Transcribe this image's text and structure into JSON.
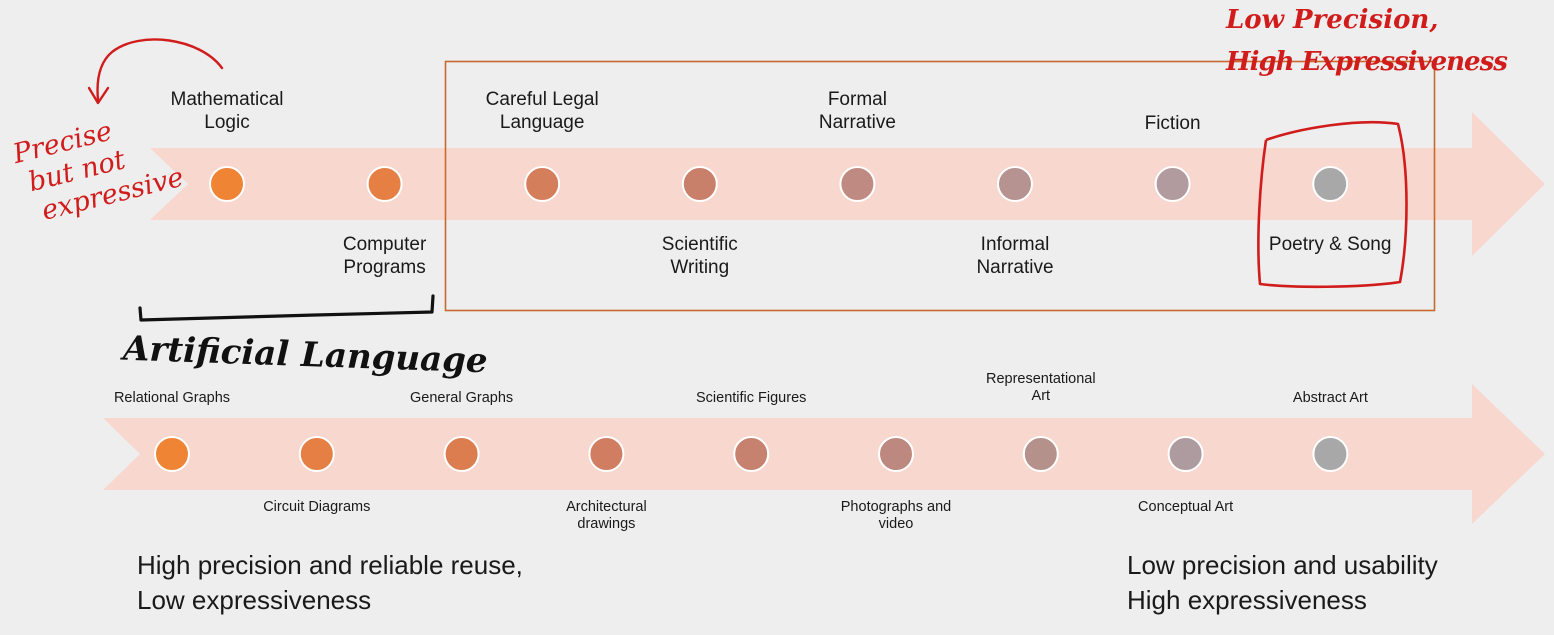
{
  "colors": {
    "band": "#f8d7cf",
    "frame": "#c8692e",
    "ink_red": "#d11c1c",
    "ink_black": "#111111"
  },
  "top_scale": {
    "points": [
      {
        "label": [
          "Mathematical",
          "Logic"
        ],
        "pos": "above",
        "color": "#ef8434"
      },
      {
        "label": [
          "Computer",
          "Programs"
        ],
        "pos": "below",
        "color": "#e57f44"
      },
      {
        "label": [
          "Careful Legal",
          "Language"
        ],
        "pos": "above",
        "color": "#d57e5c"
      },
      {
        "label": [
          "Scientific",
          "Writing"
        ],
        "pos": "below",
        "color": "#c9806a"
      },
      {
        "label": [
          "Formal",
          "Narrative"
        ],
        "pos": "above",
        "color": "#bf8a81"
      },
      {
        "label": [
          "Informal",
          "Narrative"
        ],
        "pos": "below",
        "color": "#b69391"
      },
      {
        "label": [
          "Fiction"
        ],
        "pos": "above",
        "color": "#b19b9e"
      },
      {
        "label": [
          "Poetry & Song"
        ],
        "pos": "below",
        "color": "#a8a8a8"
      }
    ]
  },
  "bottom_scale": {
    "points": [
      {
        "label": [
          "Relational Graphs"
        ],
        "pos": "above",
        "color": "#ef8434"
      },
      {
        "label": [
          "Circuit Diagrams"
        ],
        "pos": "below",
        "color": "#e57f44"
      },
      {
        "label": [
          "General Graphs"
        ],
        "pos": "above",
        "color": "#dc7d50"
      },
      {
        "label": [
          "Architectural",
          "drawings"
        ],
        "pos": "below",
        "color": "#d07d62"
      },
      {
        "label": [
          "Scientific Figures"
        ],
        "pos": "above",
        "color": "#c6826f"
      },
      {
        "label": [
          "Photographs and",
          "video"
        ],
        "pos": "below",
        "color": "#bd887f"
      },
      {
        "label": [
          "Representational",
          "Art"
        ],
        "pos": "above",
        "color": "#b5918c"
      },
      {
        "label": [
          "Conceptual Art"
        ],
        "pos": "below",
        "color": "#ad9b9f"
      },
      {
        "label": [
          "Abstract Art"
        ],
        "pos": "above",
        "color": "#a8a8a8"
      }
    ]
  },
  "bottom_left_text": [
    "High precision and reliable reuse,",
    "Low expressiveness"
  ],
  "bottom_right_text": [
    "Low precision and usability",
    "High expressiveness"
  ],
  "annotations": {
    "precise": [
      "Precise",
      "but not",
      "expressive"
    ],
    "low_precision": [
      "Low Precision,",
      "High Expressiveness"
    ],
    "artificial": "Artificial Language"
  }
}
